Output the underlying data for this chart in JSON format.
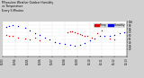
{
  "title": "Milwaukee Weather Outdoor Humidity",
  "subtitle1": "vs Temperature",
  "subtitle2": "Every 5 Minutes",
  "bg_color": "#d0d0d0",
  "plot_bg": "#ffffff",
  "red_color": "#dd0000",
  "blue_color": "#0000dd",
  "legend_red_label": "Temp",
  "legend_blue_label": "Humidity",
  "ylim": [
    0,
    100
  ],
  "xlim": [
    0,
    100
  ],
  "temp_x": [
    3,
    5,
    8,
    12,
    18,
    22,
    26,
    30,
    52,
    54,
    56,
    58,
    60,
    62,
    64,
    66,
    68,
    72,
    76,
    80,
    86,
    90
  ],
  "temp_y": [
    62,
    60,
    58,
    55,
    52,
    50,
    55,
    45,
    70,
    72,
    72,
    70,
    68,
    65,
    62,
    60,
    58,
    55,
    68,
    75,
    52,
    48
  ],
  "hum_x": [
    3,
    5,
    8,
    12,
    18,
    22,
    26,
    30,
    34,
    38,
    42,
    46,
    50,
    54,
    58,
    62,
    66,
    70,
    74,
    78,
    82,
    86,
    90,
    94,
    98
  ],
  "hum_y": [
    85,
    88,
    90,
    88,
    82,
    75,
    68,
    62,
    55,
    48,
    42,
    38,
    35,
    33,
    30,
    32,
    38,
    45,
    52,
    58,
    58,
    60,
    62,
    66,
    70
  ],
  "xtick_labels": [
    "01/03",
    "01/04",
    "01/05",
    "01/06",
    "01/07",
    "01/08",
    "01/09",
    "01/10",
    "01/11",
    "01/12",
    "01/13"
  ],
  "ytick_right": [
    20,
    30,
    40,
    50,
    60,
    70,
    80,
    90,
    100
  ],
  "dot_size": 1.0
}
